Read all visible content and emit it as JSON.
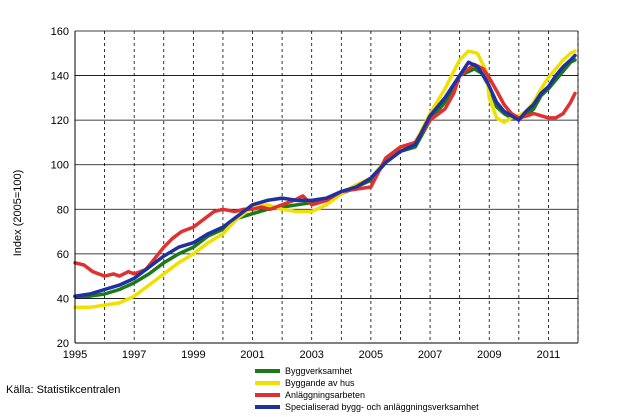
{
  "chart_data": {
    "type": "line",
    "ylabel": "Index (2005=100)",
    "xlim": [
      1995,
      2012
    ],
    "ylim": [
      20,
      160
    ],
    "x_ticks": [
      1995,
      1997,
      1999,
      2001,
      2003,
      2005,
      2007,
      2009,
      2011
    ],
    "y_ticks": [
      20,
      40,
      60,
      80,
      100,
      120,
      140,
      160
    ],
    "source": "Källa: Statistikcentralen",
    "legend_position": "bottom-center",
    "grid": {
      "vertical_dashed": true,
      "horizontal_solid": true
    },
    "series": [
      {
        "name": "Byggverksamhet",
        "color": "#1a7a1a",
        "points": [
          [
            1995.0,
            41
          ],
          [
            1995.5,
            41
          ],
          [
            1996.0,
            42
          ],
          [
            1996.5,
            44
          ],
          [
            1997.0,
            47
          ],
          [
            1997.5,
            51
          ],
          [
            1998.0,
            56
          ],
          [
            1998.5,
            60
          ],
          [
            1999.0,
            63
          ],
          [
            1999.5,
            68
          ],
          [
            2000.0,
            71
          ],
          [
            2000.5,
            76
          ],
          [
            2001.0,
            78
          ],
          [
            2001.5,
            80
          ],
          [
            2002.0,
            81
          ],
          [
            2002.5,
            82
          ],
          [
            2003.0,
            83
          ],
          [
            2003.5,
            84
          ],
          [
            2004.0,
            87
          ],
          [
            2004.5,
            90
          ],
          [
            2005.0,
            93
          ],
          [
            2005.5,
            101
          ],
          [
            2006.0,
            106
          ],
          [
            2006.5,
            108
          ],
          [
            2007.0,
            120
          ],
          [
            2007.5,
            128
          ],
          [
            2008.0,
            140
          ],
          [
            2008.5,
            143
          ],
          [
            2008.75,
            141
          ],
          [
            2009.0,
            135
          ],
          [
            2009.25,
            126
          ],
          [
            2009.5,
            123
          ],
          [
            2009.75,
            121
          ],
          [
            2010.0,
            121
          ],
          [
            2010.25,
            122
          ],
          [
            2010.5,
            125
          ],
          [
            2010.75,
            131
          ],
          [
            2011.0,
            134
          ],
          [
            2011.25,
            138
          ],
          [
            2011.5,
            142
          ],
          [
            2011.75,
            146
          ],
          [
            2011.9,
            147
          ]
        ]
      },
      {
        "name": "Byggande av hus",
        "color": "#f0e000",
        "points": [
          [
            1995.0,
            36
          ],
          [
            1995.5,
            36
          ],
          [
            1996.0,
            37
          ],
          [
            1996.5,
            38
          ],
          [
            1997.0,
            41
          ],
          [
            1997.5,
            46
          ],
          [
            1998.0,
            51
          ],
          [
            1998.5,
            56
          ],
          [
            1999.0,
            60
          ],
          [
            1999.5,
            65
          ],
          [
            2000.0,
            69
          ],
          [
            2000.5,
            76
          ],
          [
            2001.0,
            81
          ],
          [
            2001.5,
            82
          ],
          [
            2002.0,
            80
          ],
          [
            2002.5,
            79
          ],
          [
            2003.0,
            79
          ],
          [
            2003.5,
            82
          ],
          [
            2004.0,
            87
          ],
          [
            2004.5,
            91
          ],
          [
            2005.0,
            94
          ],
          [
            2005.5,
            102
          ],
          [
            2006.0,
            107
          ],
          [
            2006.5,
            110
          ],
          [
            2007.0,
            123
          ],
          [
            2007.5,
            134
          ],
          [
            2008.0,
            147
          ],
          [
            2008.3,
            151
          ],
          [
            2008.6,
            150
          ],
          [
            2008.9,
            142
          ],
          [
            2009.0,
            130
          ],
          [
            2009.25,
            121
          ],
          [
            2009.5,
            119
          ],
          [
            2009.75,
            121
          ],
          [
            2010.0,
            122
          ],
          [
            2010.25,
            124
          ],
          [
            2010.5,
            128
          ],
          [
            2010.75,
            134
          ],
          [
            2011.0,
            139
          ],
          [
            2011.25,
            143
          ],
          [
            2011.5,
            147
          ],
          [
            2011.75,
            150
          ],
          [
            2011.9,
            151
          ]
        ]
      },
      {
        "name": "Anläggningsarbeten",
        "color": "#e03030",
        "points": [
          [
            1995.0,
            56
          ],
          [
            1995.3,
            55
          ],
          [
            1995.6,
            52
          ],
          [
            1995.8,
            51
          ],
          [
            1996.0,
            50
          ],
          [
            1996.3,
            51
          ],
          [
            1996.5,
            50
          ],
          [
            1996.8,
            52
          ],
          [
            1997.0,
            51
          ],
          [
            1997.4,
            53
          ],
          [
            1997.7,
            58
          ],
          [
            1998.0,
            63
          ],
          [
            1998.3,
            67
          ],
          [
            1998.6,
            70
          ],
          [
            1999.0,
            72
          ],
          [
            1999.4,
            76
          ],
          [
            1999.7,
            79
          ],
          [
            2000.0,
            80
          ],
          [
            2000.4,
            79
          ],
          [
            2000.7,
            80
          ],
          [
            2001.0,
            80
          ],
          [
            2001.3,
            81
          ],
          [
            2001.6,
            80
          ],
          [
            2002.0,
            82
          ],
          [
            2002.4,
            84
          ],
          [
            2002.7,
            86
          ],
          [
            2003.0,
            82
          ],
          [
            2003.5,
            84
          ],
          [
            2004.0,
            88
          ],
          [
            2004.5,
            89
          ],
          [
            2005.0,
            90
          ],
          [
            2005.5,
            103
          ],
          [
            2006.0,
            108
          ],
          [
            2006.5,
            110
          ],
          [
            2007.0,
            120
          ],
          [
            2007.5,
            125
          ],
          [
            2007.8,
            132
          ],
          [
            2008.0,
            140
          ],
          [
            2008.3,
            143
          ],
          [
            2008.5,
            145
          ],
          [
            2008.8,
            143
          ],
          [
            2009.0,
            139
          ],
          [
            2009.3,
            132
          ],
          [
            2009.5,
            127
          ],
          [
            2009.75,
            123
          ],
          [
            2010.0,
            121
          ],
          [
            2010.3,
            122
          ],
          [
            2010.5,
            123
          ],
          [
            2010.75,
            122
          ],
          [
            2011.0,
            121
          ],
          [
            2011.25,
            121
          ],
          [
            2011.5,
            123
          ],
          [
            2011.75,
            128
          ],
          [
            2011.9,
            132
          ]
        ]
      },
      {
        "name": "Specialiserad bygg- och anläggningsverksamhet",
        "color": "#2030a0",
        "points": [
          [
            1995.0,
            41
          ],
          [
            1995.5,
            42
          ],
          [
            1996.0,
            44
          ],
          [
            1996.5,
            46
          ],
          [
            1997.0,
            49
          ],
          [
            1997.5,
            54
          ],
          [
            1998.0,
            59
          ],
          [
            1998.5,
            63
          ],
          [
            1999.0,
            65
          ],
          [
            1999.5,
            69
          ],
          [
            2000.0,
            72
          ],
          [
            2000.5,
            77
          ],
          [
            2001.0,
            82
          ],
          [
            2001.5,
            84
          ],
          [
            2002.0,
            85
          ],
          [
            2002.5,
            84
          ],
          [
            2003.0,
            84
          ],
          [
            2003.5,
            85
          ],
          [
            2004.0,
            88
          ],
          [
            2004.5,
            90
          ],
          [
            2005.0,
            94
          ],
          [
            2005.5,
            101
          ],
          [
            2006.0,
            106
          ],
          [
            2006.5,
            109
          ],
          [
            2007.0,
            122
          ],
          [
            2007.5,
            130
          ],
          [
            2008.0,
            140
          ],
          [
            2008.3,
            146
          ],
          [
            2008.6,
            144
          ],
          [
            2008.9,
            138
          ],
          [
            2009.25,
            128
          ],
          [
            2009.5,
            124
          ],
          [
            2009.75,
            122
          ],
          [
            2010.0,
            120
          ],
          [
            2010.25,
            124
          ],
          [
            2010.5,
            127
          ],
          [
            2010.75,
            132
          ],
          [
            2011.0,
            135
          ],
          [
            2011.25,
            140
          ],
          [
            2011.5,
            144
          ],
          [
            2011.75,
            147
          ],
          [
            2011.9,
            149
          ]
        ]
      }
    ]
  }
}
